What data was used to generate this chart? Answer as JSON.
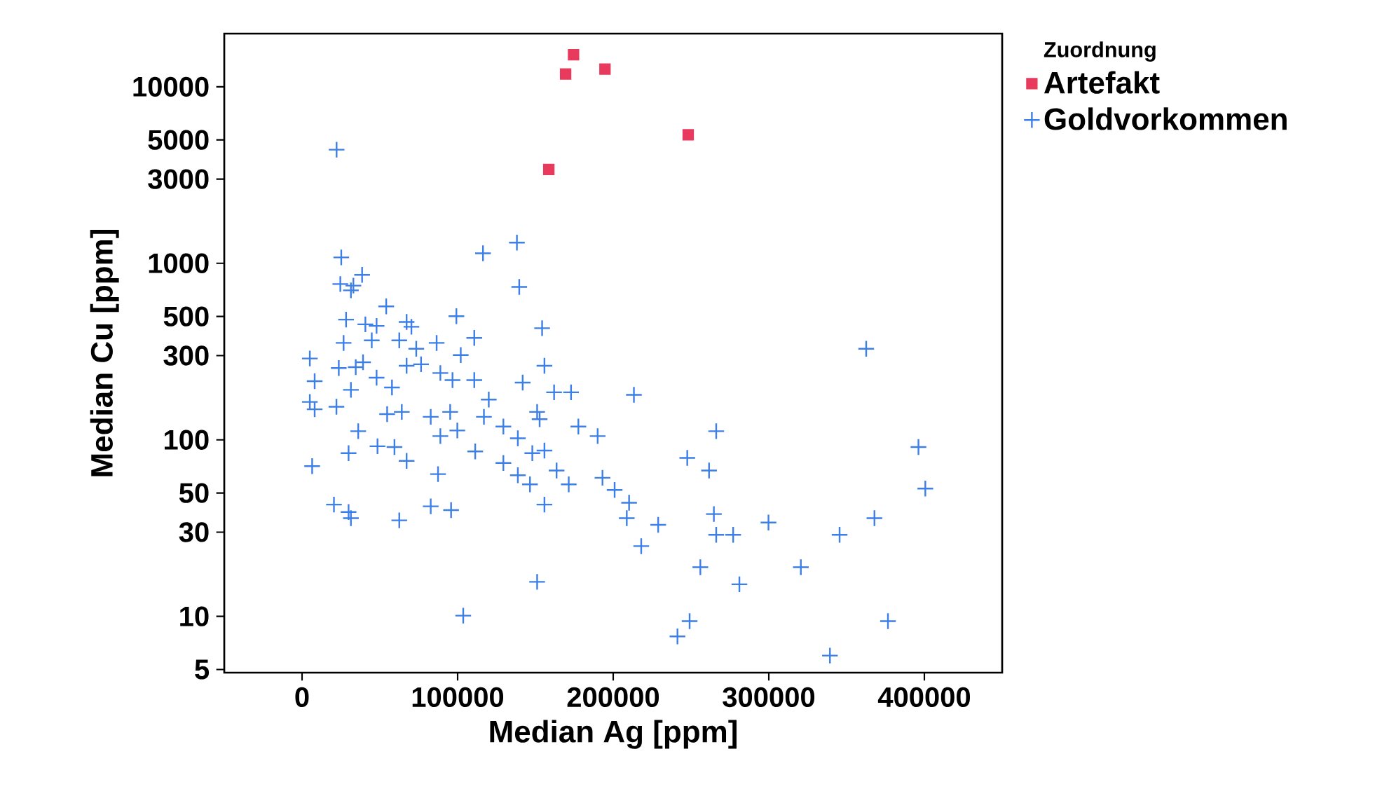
{
  "chart_data": {
    "type": "scatter",
    "xlabel": "Median Ag [ppm]",
    "ylabel": "Median Cu [ppm]",
    "legend_title": "Zuordnung",
    "legend": "right",
    "log": "y",
    "grid": false,
    "xlim": [
      -50000,
      450000
    ],
    "xticks": [
      0,
      100000,
      200000,
      300000,
      400000
    ],
    "ylim": [
      4.8,
      20000
    ],
    "yticks": [
      5,
      10,
      30,
      50,
      100,
      300,
      500,
      1000,
      3000,
      5000,
      10000
    ],
    "series": [
      {
        "name": "Artefakt",
        "color": "#e83a5c",
        "marker": "square",
        "x": [
          174500,
          169400,
          194700,
          158600,
          248200
        ],
        "values": [
          15200,
          11800,
          12600,
          3400,
          5340
        ]
      },
      {
        "name": "Goldvorkommen",
        "color": "#3d7fe8",
        "marker": "cross",
        "x": [
          22200,
          116300,
          138100,
          139600,
          38600,
          24600,
          31400,
          33000,
          54100,
          28300,
          40700,
          47900,
          67200,
          70300,
          99200,
          110700,
          26700,
          44800,
          62500,
          73400,
          86500,
          102000,
          154300,
          5000,
          8100,
          23600,
          34500,
          39200,
          47900,
          57800,
          67200,
          76500,
          88900,
          96700,
          110700,
          141800,
          155800,
          162000,
          172900,
          213300,
          362600,
          5000,
          8100,
          22100,
          31400,
          54700,
          64100,
          82700,
          95200,
          120000,
          116900,
          129400,
          151100,
          152700,
          177600,
          190000,
          266200,
          396200,
          6500,
          29900,
          36100,
          48500,
          59400,
          67200,
          88900,
          99800,
          111300,
          138700,
          148000,
          155800,
          129400,
          138700,
          146500,
          163600,
          171400,
          193100,
          200900,
          210200,
          208700,
          228900,
          218000,
          247600,
          261600,
          264700,
          266200,
          277100,
          299800,
          345500,
          367900,
          400600,
          20500,
          31400,
          29900,
          62500,
          82700,
          95800,
          87400,
          155800,
          151100,
          103600,
          256000,
          281100,
          320600,
          249100,
          241300,
          339300,
          376600,
          25200
        ],
        "values": [
          4400,
          1140,
          1310,
          735,
          860,
          763,
          703,
          748,
          570,
          480,
          451,
          442,
          465,
          437,
          502,
          378,
          354,
          366,
          366,
          328,
          354,
          302,
          429,
          289,
          215,
          255,
          258,
          275,
          225,
          198,
          263,
          268,
          239,
          218,
          218,
          211,
          263,
          186,
          186,
          180,
          328,
          164,
          149,
          154,
          192,
          140,
          144,
          135,
          144,
          169,
          135,
          119,
          144,
          131,
          119,
          105,
          112,
          91,
          71,
          84,
          112,
          92,
          91,
          76,
          105,
          113,
          86,
          102,
          84,
          87,
          74,
          63,
          56,
          67,
          56,
          61,
          52,
          44,
          36,
          33,
          25,
          79,
          67,
          38,
          29,
          29,
          34,
          29,
          36,
          53,
          43,
          36,
          39,
          35,
          42,
          40,
          64,
          43,
          15.7,
          10.1,
          19,
          15.2,
          19,
          9.4,
          7.7,
          6.0,
          9.4,
          1080
        ]
      }
    ]
  }
}
